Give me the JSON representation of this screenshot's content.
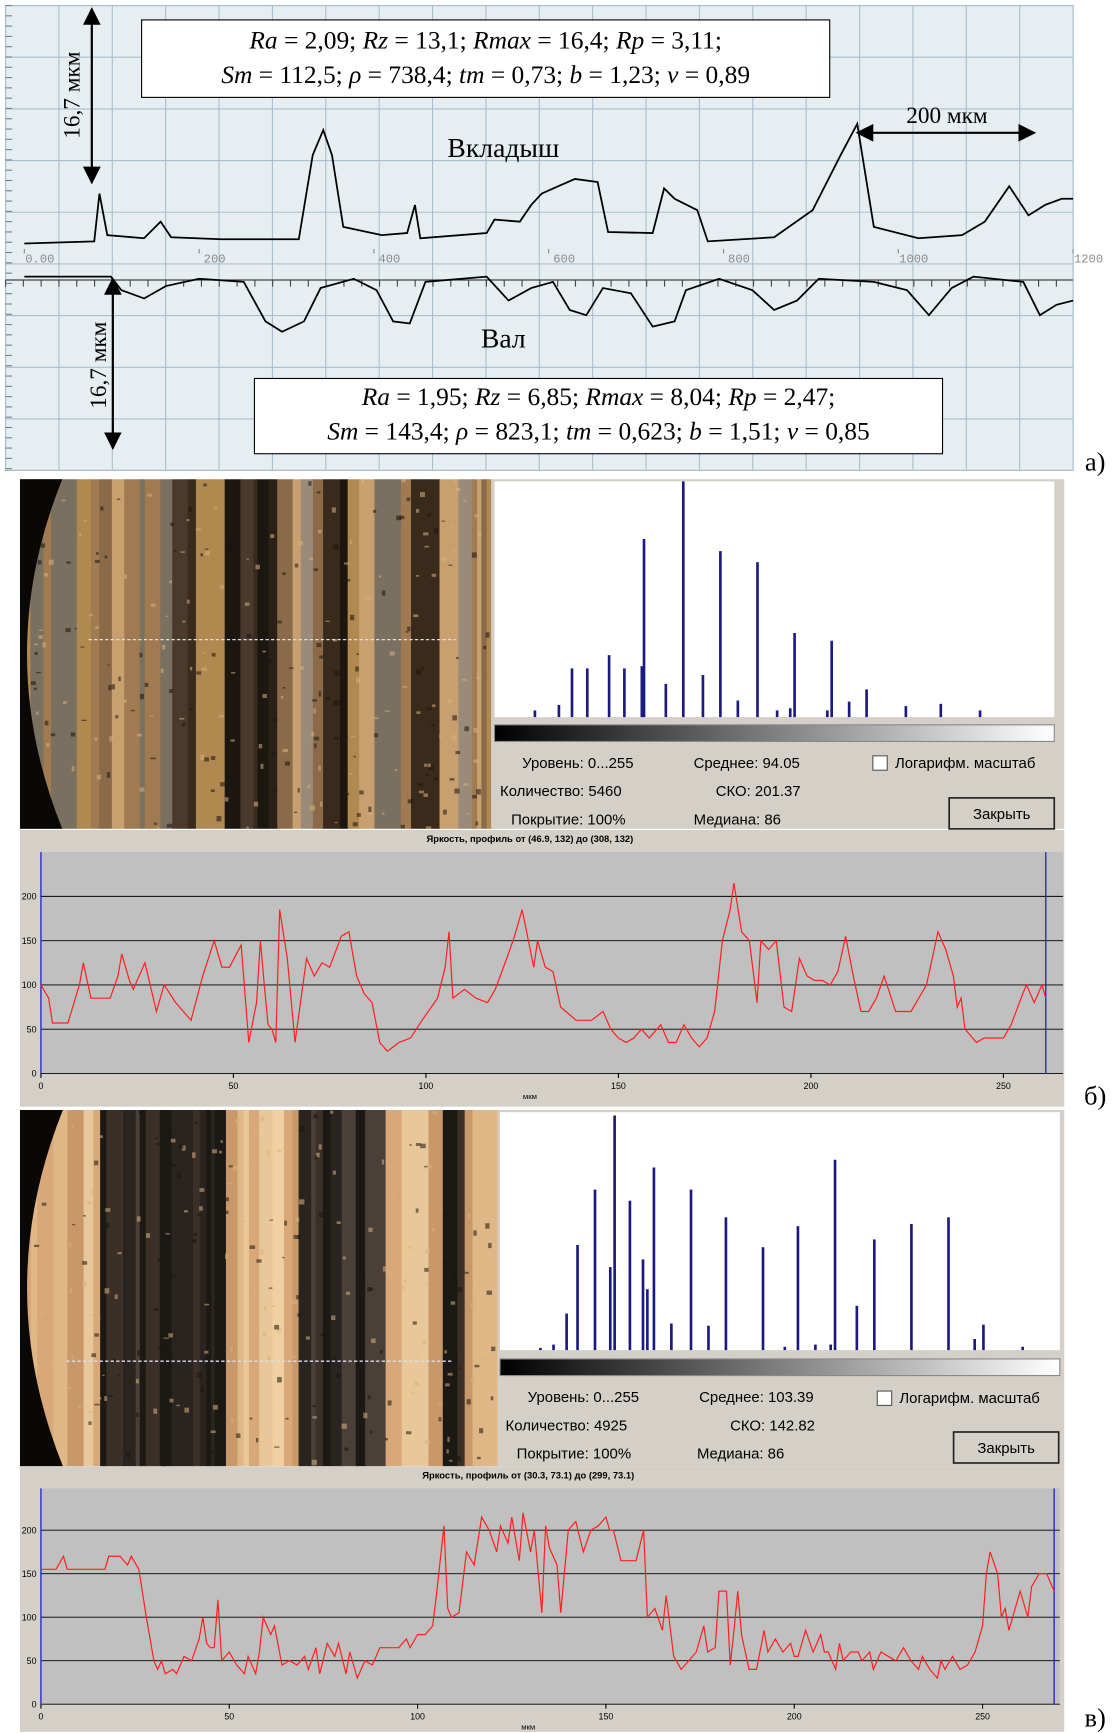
{
  "chart_data": [
    {
      "type": "line",
      "xlim": [
        0,
        1200
      ],
      "xticks": [
        {
          "value": 0,
          "label": "0.00"
        },
        200,
        400,
        600,
        800,
        1000,
        1200
      ],
      "series": [
        {
          "name": "Вкладыш",
          "color": "#000000",
          "x": [
            0,
            80,
            86,
            95,
            137,
            156,
            168,
            225,
            314,
            330,
            342,
            352,
            365,
            409,
            438,
            447,
            453,
            529,
            538,
            567,
            580,
            592,
            611,
            630,
            656,
            668,
            719,
            732,
            744,
            770,
            782,
            858,
            902,
            934,
            953,
            972,
            1023,
            1073,
            1099,
            1127,
            1149,
            1168,
            1187,
            1200
          ],
          "values": [
            0,
            0.2,
            4.8,
            0.8,
            0.5,
            2.1,
            0.6,
            0.4,
            0.4,
            8.5,
            10.9,
            8.5,
            1.6,
            0.8,
            1,
            3.7,
            0.5,
            1,
            2.3,
            2.1,
            3.7,
            4.8,
            5.5,
            6.2,
            5.9,
            1.1,
            1,
            5.3,
            4.3,
            3.2,
            0.2,
            0.6,
            3.2,
            8.5,
            11.5,
            1.6,
            0.5,
            0.8,
            2.1,
            5.5,
            2.7,
            3.7,
            4.3,
            4.3
          ]
        },
        {
          "name": "Вал",
          "color": "#000000",
          "x": [
            0,
            99,
            111,
            137,
            162,
            200,
            251,
            276,
            295,
            320,
            339,
            377,
            403,
            422,
            441,
            459,
            529,
            554,
            580,
            605,
            624,
            643,
            662,
            694,
            719,
            744,
            757,
            795,
            833,
            858,
            884,
            909,
            972,
            1010,
            1035,
            1061,
            1086,
            1143,
            1162,
            1181,
            1200
          ],
          "values": [
            0,
            0,
            -1.3,
            -2.1,
            -0.9,
            -0.2,
            -0.5,
            -4.3,
            -5.3,
            -4.3,
            -1.1,
            -0.2,
            -1.3,
            -4.3,
            -4.5,
            -0.5,
            0,
            -2.3,
            -1.1,
            -0.5,
            -3.2,
            -3.7,
            -1.1,
            -1.6,
            -4.8,
            -4.3,
            -1.3,
            -0.2,
            -1.3,
            -3.2,
            -2.3,
            -0.2,
            -0.5,
            -1.3,
            -3.7,
            -1.1,
            0,
            -0.5,
            -3.7,
            -2.7,
            -2.3
          ]
        }
      ],
      "annotations": [
        "16,7 мкм",
        "16,7 мкм",
        "200 мкм"
      ],
      "parameter_boxes": [
        {
          "lines": [
            [
              "Ra",
              " = 2,09; ",
              "Rz",
              " = 13,1; ",
              "Rmax",
              " = 16,4; ",
              "Rp",
              " = 3,11;"
            ],
            [
              "Sm",
              " = 112,5; ",
              "ρ",
              " = 738,4; ",
              "tm",
              " = 0,73; ",
              "b",
              " = 1,23; ",
              "ν",
              " = 0,89"
            ]
          ]
        },
        {
          "lines": [
            [
              "Ra",
              " = 1,95; ",
              "Rz",
              " = 6,85; ",
              "Rmax",
              " = 8,04; ",
              "Rp",
              " = 2,47;"
            ],
            [
              "Sm",
              " = 143,4; ",
              "ρ",
              " = 823,1; ",
              "tm",
              " = 0,623; ",
              "b",
              " = 1,51; ",
              "ν",
              " = 0,85"
            ]
          ]
        }
      ]
    },
    {
      "type": "bar",
      "color": "#1a1a80",
      "xlim": [
        0,
        255
      ],
      "x": [
        17,
        28,
        34,
        41,
        51,
        58,
        66,
        67,
        77,
        85,
        94,
        102,
        110,
        119,
        128,
        134,
        136,
        151,
        153,
        161,
        169,
        187,
        203,
        221
      ],
      "values": [
        6,
        11,
        44,
        44,
        56,
        44,
        46,
        161,
        30,
        213,
        38,
        150,
        15,
        140,
        6,
        8,
        76,
        6,
        69,
        14,
        25,
        10,
        12,
        6
      ]
    },
    {
      "type": "line",
      "title": "Яркость, профиль от (46.9, 132) до (308, 132)",
      "xlabel": "мкм",
      "color": "#ff2020",
      "grid": true,
      "xlim": [
        0,
        265.5
      ],
      "ylim": [
        0,
        250
      ],
      "xticks": [
        0,
        50,
        100,
        150,
        200,
        250
      ],
      "yticks": [
        0,
        50,
        100,
        150,
        200
      ],
      "x": [
        0,
        2,
        3,
        7,
        10,
        11,
        13,
        18,
        20,
        21,
        23,
        24,
        27,
        30,
        32,
        35,
        39,
        42,
        45,
        47,
        49,
        52,
        54,
        56,
        57,
        58,
        59,
        60,
        61,
        62,
        64,
        66,
        69,
        71,
        73,
        75,
        78,
        80,
        82,
        84,
        86,
        88,
        90,
        93,
        96,
        99,
        103,
        105,
        106,
        107,
        110,
        113,
        116,
        118,
        121,
        123,
        125,
        128,
        129,
        131,
        133,
        135,
        139,
        143,
        146,
        148,
        150,
        152,
        154,
        156,
        158,
        161,
        163,
        165,
        167,
        169,
        171,
        173,
        175,
        177,
        179,
        180,
        182,
        184,
        186,
        187,
        189,
        191,
        193,
        195,
        197,
        199,
        201,
        203,
        205,
        207,
        209,
        211,
        213,
        215,
        217,
        219,
        222,
        226,
        230,
        233,
        235,
        237,
        238,
        239,
        240,
        242,
        243,
        245,
        247,
        250,
        252,
        255,
        256,
        258,
        260,
        261
      ],
      "values": [
        100,
        85,
        57,
        57,
        100,
        125,
        85,
        85,
        110,
        135,
        105,
        95,
        125,
        70,
        100,
        80,
        60,
        110,
        150,
        120,
        120,
        145,
        35,
        80,
        150,
        100,
        55,
        50,
        35,
        185,
        130,
        35,
        130,
        110,
        125,
        120,
        155,
        160,
        110,
        90,
        80,
        35,
        25,
        35,
        40,
        60,
        85,
        120,
        160,
        85,
        95,
        85,
        80,
        95,
        130,
        155,
        185,
        120,
        150,
        120,
        115,
        75,
        60,
        60,
        70,
        50,
        40,
        35,
        40,
        50,
        40,
        55,
        35,
        35,
        55,
        40,
        30,
        40,
        70,
        150,
        185,
        215,
        160,
        150,
        80,
        150,
        140,
        150,
        75,
        70,
        130,
        110,
        105,
        105,
        100,
        115,
        155,
        110,
        70,
        70,
        85,
        110,
        70,
        70,
        100,
        160,
        140,
        110,
        75,
        85,
        50,
        40,
        35,
        40,
        40,
        40,
        55,
        90,
        100,
        80,
        100,
        85
      ]
    },
    {
      "type": "bar",
      "color": "#1a1a80",
      "xlim": [
        0,
        255
      ],
      "x": [
        17,
        23,
        29,
        34,
        42,
        49,
        51,
        58,
        64,
        66,
        69,
        77,
        86,
        94,
        102,
        119,
        129,
        135,
        143,
        150,
        152,
        162,
        170,
        187,
        204,
        216,
        220,
        238
      ],
      "values": [
        2,
        5,
        33,
        95,
        145,
        75,
        212,
        135,
        82,
        55,
        165,
        24,
        145,
        22,
        120,
        93,
        3,
        112,
        5,
        5,
        172,
        40,
        100,
        114,
        120,
        10,
        23,
        3
      ]
    },
    {
      "type": "line",
      "title": "Яркость, профиль от (30.3, 73.1) до (299, 73.1)",
      "xlabel": "мкм",
      "color": "#ff2020",
      "grid": true,
      "xlim": [
        0,
        270.5
      ],
      "ylim": [
        0,
        248
      ],
      "xticks": [
        0,
        50,
        100,
        150,
        200,
        250
      ],
      "yticks": [
        0,
        50,
        100,
        150,
        200
      ],
      "x": [
        0,
        4,
        6,
        7,
        10,
        17,
        18,
        21,
        23,
        24,
        26,
        28,
        30,
        31,
        32,
        33,
        35,
        36,
        38,
        40,
        42,
        43,
        44,
        45,
        46,
        47,
        48,
        50,
        52,
        54,
        55,
        57,
        58,
        59,
        61,
        62,
        64,
        66,
        68,
        70,
        71,
        73,
        74,
        76,
        78,
        79,
        81,
        82,
        84,
        86,
        88,
        90,
        92,
        95,
        97,
        98,
        100,
        102,
        104,
        105,
        107,
        108,
        109,
        111,
        113,
        115,
        117,
        119,
        121,
        122,
        124,
        125,
        127,
        128,
        130,
        131,
        133,
        134,
        135,
        137,
        138,
        140,
        142,
        144,
        146,
        148,
        150,
        151,
        152,
        154,
        156,
        158,
        160,
        161,
        163,
        165,
        166,
        168,
        170,
        172,
        174,
        176,
        177,
        179,
        180,
        182,
        183,
        184,
        185,
        186,
        188,
        190,
        192,
        193,
        195,
        197,
        199,
        200,
        201,
        203,
        205,
        206,
        207,
        208,
        209,
        211,
        212,
        213,
        215,
        217,
        218,
        220,
        221,
        223,
        225,
        227,
        229,
        231,
        233,
        234,
        236,
        238,
        239,
        240,
        242,
        244,
        246,
        248,
        250,
        251,
        252,
        254,
        255,
        256,
        257,
        258,
        260,
        262,
        263,
        265,
        267,
        269
      ],
      "values": [
        155,
        155,
        170,
        155,
        155,
        155,
        170,
        170,
        160,
        170,
        155,
        100,
        50,
        40,
        50,
        35,
        40,
        35,
        55,
        50,
        75,
        100,
        70,
        65,
        65,
        120,
        50,
        60,
        45,
        35,
        55,
        35,
        60,
        100,
        80,
        90,
        45,
        50,
        45,
        55,
        40,
        65,
        35,
        70,
        55,
        70,
        35,
        60,
        30,
        50,
        45,
        65,
        65,
        65,
        75,
        65,
        80,
        80,
        90,
        125,
        205,
        110,
        100,
        105,
        175,
        160,
        215,
        200,
        175,
        205,
        185,
        215,
        165,
        220,
        175,
        200,
        105,
        205,
        180,
        160,
        105,
        200,
        210,
        175,
        200,
        205,
        215,
        200,
        200,
        165,
        165,
        165,
        200,
        100,
        110,
        85,
        125,
        55,
        40,
        50,
        60,
        90,
        60,
        65,
        130,
        130,
        45,
        85,
        130,
        80,
        40,
        40,
        85,
        60,
        75,
        60,
        70,
        55,
        55,
        85,
        60,
        70,
        80,
        60,
        60,
        40,
        70,
        50,
        60,
        60,
        50,
        60,
        40,
        60,
        55,
        50,
        65,
        50,
        40,
        55,
        40,
        30,
        50,
        40,
        55,
        40,
        45,
        60,
        90,
        150,
        175,
        150,
        100,
        110,
        85,
        100,
        130,
        100,
        135,
        150,
        150,
        130
      ]
    }
  ],
  "panels": [
    {
      "label": "а)"
    },
    {
      "label": "б)",
      "stats": [
        [
          "Уровень: 0...255",
          "Среднее: 94.05"
        ],
        [
          "Количество: 5460",
          "СКО: 201.37"
        ],
        [
          "Покрытие: 100%",
          "Медиана: 86"
        ]
      ],
      "checkbox": "Логарифм. масштаб",
      "button": "Закрыть"
    },
    {
      "label": "в)",
      "stats": [
        [
          "Уровень: 0...255",
          "Среднее: 103.39"
        ],
        [
          "Количество: 4925",
          "СКО: 142.82"
        ],
        [
          "Покрытие: 100%",
          "Медиана: 86"
        ]
      ],
      "checkbox": "Логарифм. масштаб",
      "button": "Закрыть"
    }
  ]
}
